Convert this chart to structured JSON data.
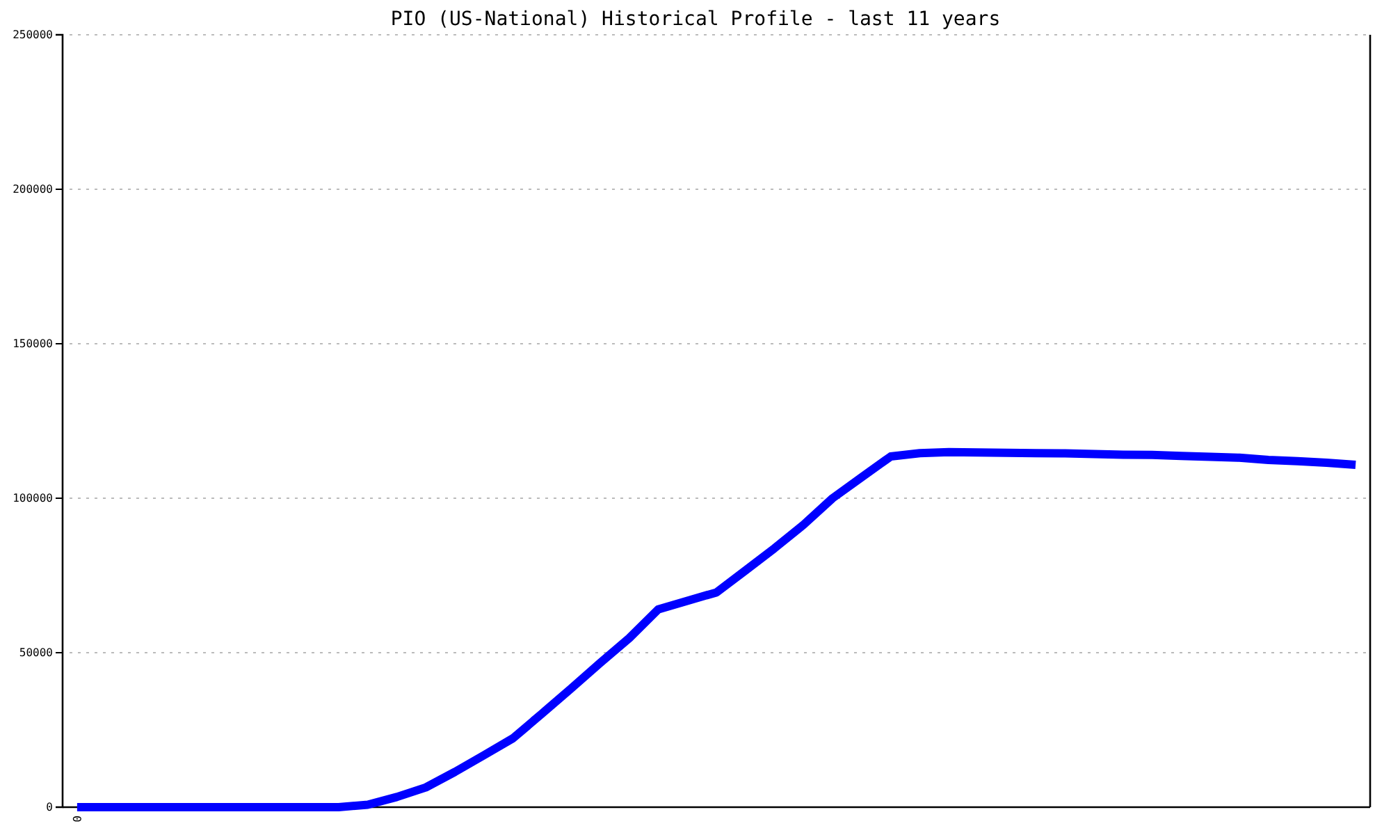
{
  "chart_data": {
    "type": "line",
    "title": "PIO (US-National) Historical Profile - last 11 years",
    "categories": [
      "0",
      null,
      null,
      null,
      null,
      null,
      null,
      null,
      null,
      null,
      null,
      null,
      null,
      null,
      null,
      null,
      null,
      null,
      null,
      null,
      null,
      null,
      null,
      null,
      null,
      null,
      null,
      null,
      null,
      null,
      null,
      null,
      null,
      null,
      null,
      null,
      null,
      null,
      null,
      null,
      null,
      null,
      null,
      null,
      null
    ],
    "series": [
      {
        "color": "#0000ff",
        "values": [
          0,
          0,
          0,
          0,
          0,
          0,
          0,
          0,
          0,
          0,
          800,
          3300,
          6400,
          11400,
          16800,
          22300,
          30300,
          38400,
          46700,
          54700,
          64000,
          66800,
          69500,
          76600,
          83800,
          91400,
          100000,
          106800,
          113500,
          114600,
          114900,
          114800,
          114700,
          114600,
          114500,
          114300,
          114100,
          114000,
          113700,
          113400,
          113100,
          112400,
          112000,
          111500,
          110800
        ]
      }
    ],
    "ylim": [
      0,
      250000
    ],
    "yticks": [
      0,
      50000,
      100000,
      150000,
      200000,
      250000
    ],
    "grid": "y"
  }
}
